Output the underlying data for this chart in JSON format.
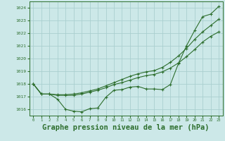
{
  "background_color": "#cce8e8",
  "grid_color": "#aacfcf",
  "line_color": "#2d6e2d",
  "title": "Graphe pression niveau de la mer (hPa)",
  "xlim": [
    -0.5,
    23.5
  ],
  "ylim": [
    1015.5,
    1024.5
  ],
  "yticks": [
    1016,
    1017,
    1018,
    1019,
    1020,
    1021,
    1022,
    1023,
    1024
  ],
  "xticks": [
    0,
    1,
    2,
    3,
    4,
    5,
    6,
    7,
    8,
    9,
    10,
    11,
    12,
    13,
    14,
    15,
    16,
    17,
    18,
    19,
    20,
    21,
    22,
    23
  ],
  "line1_x": [
    0,
    1,
    2,
    3,
    4,
    5,
    6,
    7,
    8,
    9,
    10,
    11,
    12,
    13,
    14,
    15,
    16,
    17,
    18,
    19,
    20,
    21,
    22,
    23
  ],
  "line1_y": [
    1018.0,
    1017.2,
    1017.2,
    1016.8,
    1016.0,
    1015.85,
    1015.8,
    1016.05,
    1016.1,
    1016.95,
    1017.5,
    1017.55,
    1017.75,
    1017.8,
    1017.6,
    1017.6,
    1017.55,
    1017.95,
    1019.6,
    1021.0,
    1022.2,
    1023.3,
    1023.5,
    1024.1
  ],
  "line2_x": [
    0,
    1,
    2,
    3,
    4,
    5,
    6,
    7,
    8,
    9,
    10,
    11,
    12,
    13,
    14,
    15,
    16,
    17,
    18,
    19,
    20,
    21,
    22,
    23
  ],
  "line2_y": [
    1018.0,
    1017.2,
    1017.2,
    1017.1,
    1017.1,
    1017.1,
    1017.2,
    1017.35,
    1017.5,
    1017.7,
    1017.95,
    1018.1,
    1018.3,
    1018.5,
    1018.65,
    1018.75,
    1018.95,
    1019.25,
    1019.65,
    1020.15,
    1020.7,
    1021.3,
    1021.75,
    1022.1
  ],
  "line3_x": [
    0,
    1,
    2,
    3,
    4,
    5,
    6,
    7,
    8,
    9,
    10,
    11,
    12,
    13,
    14,
    15,
    16,
    17,
    18,
    19,
    20,
    21,
    22,
    23
  ],
  "line3_y": [
    1018.0,
    1017.2,
    1017.2,
    1017.15,
    1017.15,
    1017.2,
    1017.3,
    1017.45,
    1017.6,
    1017.85,
    1018.1,
    1018.35,
    1018.6,
    1018.8,
    1018.95,
    1019.05,
    1019.3,
    1019.7,
    1020.2,
    1020.8,
    1021.5,
    1022.1,
    1022.6,
    1023.1
  ],
  "marker": "+",
  "markersize": 3.5,
  "linewidth": 0.8,
  "title_fontsize": 7.5
}
